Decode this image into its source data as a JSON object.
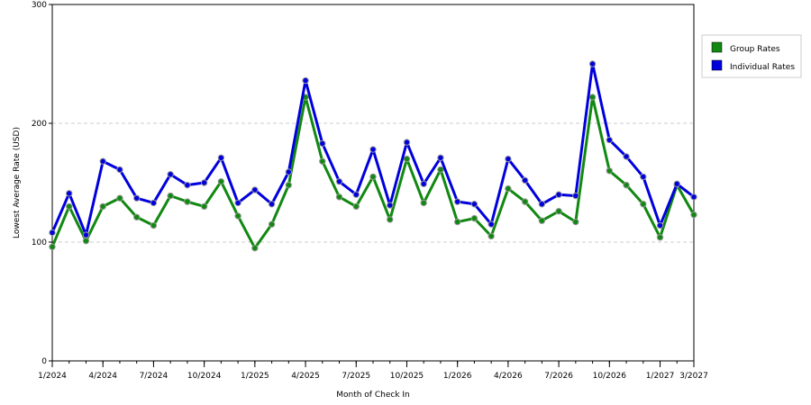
{
  "chart_data": {
    "type": "line",
    "xlabel": "Month of Check In",
    "ylabel": "Lowest Average Rate (USD)",
    "ylim": [
      0,
      300
    ],
    "yticks": [
      "0",
      "100",
      "200",
      "300"
    ],
    "xtick_labels": [
      "1/2024",
      "4/2024",
      "7/2024",
      "10/2024",
      "1/2025",
      "4/2025",
      "7/2025",
      "10/2025",
      "1/2026",
      "4/2026",
      "7/2026",
      "10/2026",
      "1/2027",
      "3/2027"
    ],
    "x": [
      "1/2024",
      "2/2024",
      "3/2024",
      "4/2024",
      "5/2024",
      "6/2024",
      "7/2024",
      "8/2024",
      "9/2024",
      "10/2024",
      "11/2024",
      "12/2024",
      "1/2025",
      "2/2025",
      "3/2025",
      "4/2025",
      "5/2025",
      "6/2025",
      "7/2025",
      "8/2025",
      "9/2025",
      "10/2025",
      "11/2025",
      "12/2025",
      "1/2026",
      "2/2026",
      "3/2026",
      "4/2026",
      "5/2026",
      "6/2026",
      "7/2026",
      "8/2026",
      "9/2026",
      "10/2026",
      "11/2026",
      "12/2026",
      "1/2027",
      "2/2027",
      "3/2027"
    ],
    "grid": "horizontal dashed",
    "legend_position": "right",
    "series": [
      {
        "name": "Group Rates",
        "color": "#118811",
        "values": [
          96,
          130,
          101,
          130,
          137,
          121,
          114,
          139,
          134,
          130,
          151,
          122,
          95,
          115,
          148,
          222,
          168,
          138,
          130,
          155,
          119,
          170,
          133,
          161,
          117,
          120,
          105,
          145,
          134,
          118,
          126,
          117,
          222,
          160,
          148,
          132,
          104,
          148,
          123
        ]
      },
      {
        "name": "Individual Rates",
        "color": "#0000dd",
        "values": [
          108,
          141,
          106,
          168,
          161,
          137,
          133,
          157,
          148,
          150,
          171,
          133,
          144,
          132,
          159,
          236,
          183,
          151,
          140,
          178,
          131,
          184,
          149,
          171,
          134,
          132,
          115,
          170,
          152,
          132,
          140,
          139,
          250,
          186,
          172,
          155,
          114,
          149,
          138
        ]
      }
    ]
  }
}
